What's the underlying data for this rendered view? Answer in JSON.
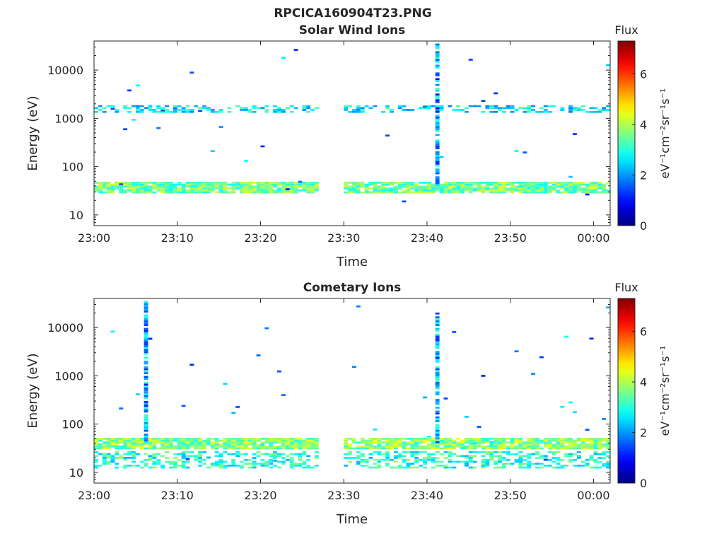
{
  "figure": {
    "title": "RPCICA160904T23.PNG"
  },
  "colors": {
    "axis": "#262626",
    "background": "#ffffff"
  },
  "colormap": "jet",
  "chart_data": [
    {
      "type": "heatmap",
      "title": "Solar Wind Ions",
      "xlabel": "Time",
      "ylabel": "Energy (eV)",
      "x_range": [
        "23:00",
        "00:02"
      ],
      "y_scale": "log",
      "ylim": [
        6,
        40000
      ],
      "xticks": [
        "23:00",
        "23:10",
        "23:20",
        "23:30",
        "23:40",
        "23:50",
        "00:00"
      ],
      "yticks": [
        "10",
        "100",
        "1000",
        "10000"
      ],
      "data_gap": [
        "23:27",
        "23:30"
      ],
      "colorbar": {
        "label": "Flux",
        "units": "eV⁻¹cm⁻²sr⁻¹s⁻¹",
        "range": [
          0,
          7.3
        ],
        "ticks": [
          "0",
          "2",
          "4",
          "6"
        ]
      },
      "features": [
        {
          "description": "main band",
          "energy_range": [
            28,
            48
          ],
          "flux": 3.5
        },
        {
          "description": "secondary band",
          "energy_range": [
            1300,
            1800
          ],
          "flux": 2.6
        },
        {
          "description": "spike",
          "time": "23:41",
          "energy_range": [
            40,
            35000
          ]
        }
      ]
    },
    {
      "type": "heatmap",
      "title": "Cometary Ions",
      "xlabel": "Time",
      "ylabel": "Energy (eV)",
      "x_range": [
        "23:00",
        "00:02"
      ],
      "y_scale": "log",
      "ylim": [
        6,
        40000
      ],
      "xticks": [
        "23:00",
        "23:10",
        "23:20",
        "23:30",
        "23:40",
        "23:50",
        "00:00"
      ],
      "yticks": [
        "10",
        "100",
        "1000",
        "10000"
      ],
      "data_gap": [
        "23:27",
        "23:30"
      ],
      "colorbar": {
        "label": "Flux",
        "units": "eV⁻¹cm⁻²sr⁻¹s⁻¹",
        "range": [
          0,
          7.3
        ],
        "ticks": [
          "0",
          "2",
          "4",
          "6"
        ]
      },
      "features": [
        {
          "description": "main band",
          "energy_range": [
            30,
            48
          ],
          "flux": 3.7
        },
        {
          "description": "low energy band",
          "energy_range": [
            12,
            25
          ],
          "flux": 3.0
        },
        {
          "description": "spike",
          "time": "23:06",
          "energy_range": [
            40,
            35000
          ]
        },
        {
          "description": "spike",
          "time": "23:41",
          "energy_range": [
            40,
            20000
          ]
        }
      ]
    }
  ]
}
